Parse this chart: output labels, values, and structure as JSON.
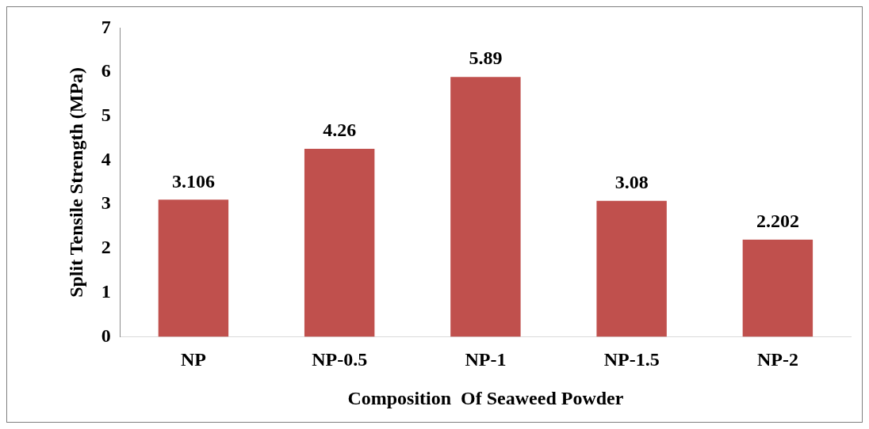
{
  "chart_data": {
    "type": "bar",
    "xlabel": "Composition  Of Seaweed Powder",
    "ylabel": "Split Tensile Strength (MPa)",
    "categories": [
      "NP",
      "NP-0.5",
      "NP-1",
      "NP-1.5",
      "NP-2"
    ],
    "values": [
      3.106,
      4.26,
      5.89,
      3.08,
      2.202
    ],
    "color": "#c0504d",
    "ylim": [
      0,
      7
    ],
    "yticks": [
      0,
      1,
      2,
      3,
      4,
      5,
      6,
      7
    ],
    "grid": false,
    "legend": false,
    "data_labels": true
  }
}
